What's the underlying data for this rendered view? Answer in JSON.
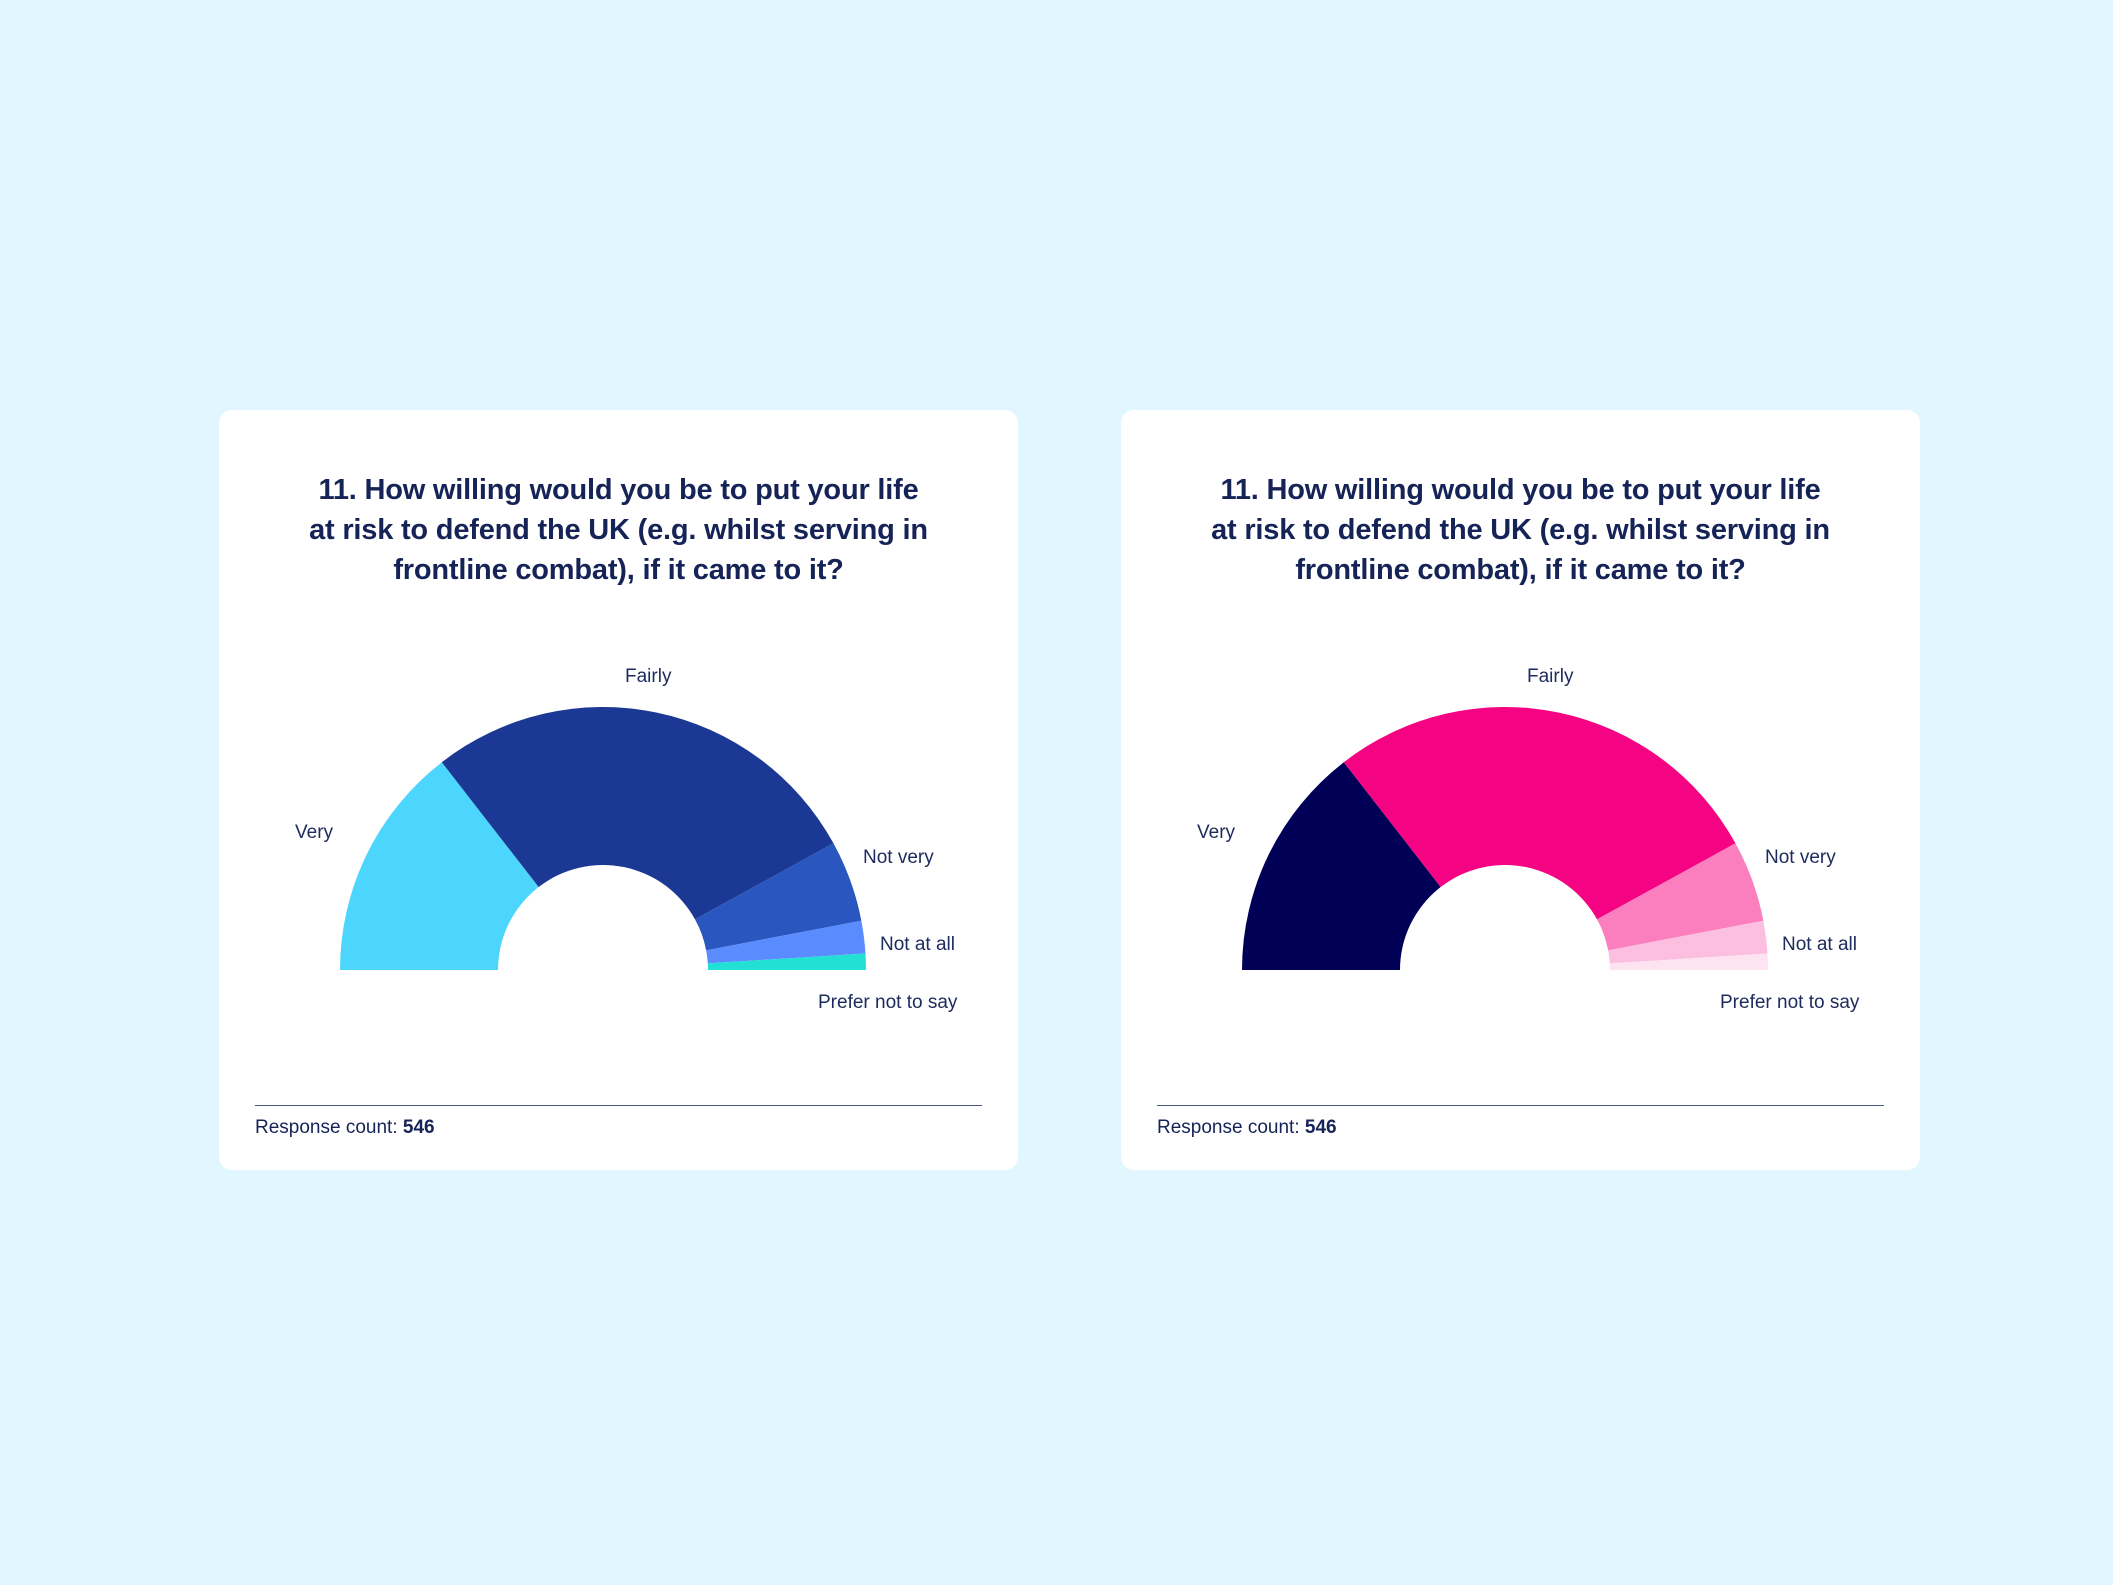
{
  "cards": [
    {
      "title_lines": [
        "11. How willing would you be to put your life",
        "at risk to defend the UK (e.g. whilst serving in",
        "frontline combat), if it came to it?"
      ],
      "footer": {
        "label": "Response count:",
        "value": "546"
      },
      "labels": {
        "very": "Very",
        "fairly": "Fairly",
        "not_very": "Not very",
        "not_at_all": "Not at all",
        "prefer_not": "Prefer not to say"
      },
      "colors": [
        "#4cd5fd",
        "#1b3894",
        "#2a57bf",
        "#5b8cff",
        "#23e0d5"
      ]
    },
    {
      "title_lines": [
        "11. How willing would you be to put your life",
        "at risk to defend the UK (e.g. whilst serving in",
        "frontline combat), if it came to it?"
      ],
      "footer": {
        "label": "Response count:",
        "value": "546"
      },
      "labels": {
        "very": "Very",
        "fairly": "Fairly",
        "not_very": "Not very",
        "not_at_all": "Not at all",
        "prefer_not": "Prefer not to say"
      },
      "colors": [
        "#010057",
        "#f40382",
        "#fb7fbf",
        "#fdbfdf",
        "#fee4f1"
      ]
    }
  ],
  "chart_data": [
    {
      "type": "pie",
      "subtype": "half-donut",
      "title": "11. How willing would you be to put your life at risk to defend the UK (e.g. whilst serving in frontline combat), if it came to it?",
      "categories": [
        "Very",
        "Fairly",
        "Not very",
        "Not at all",
        "Prefer not to say"
      ],
      "values": [
        29,
        55,
        10,
        4,
        2
      ],
      "unit": "% (estimated from arc angles)",
      "colors": [
        "#4cd5fd",
        "#1b3894",
        "#2a57bf",
        "#5b8cff",
        "#23e0d5"
      ],
      "response_count": 546,
      "legend": "none (direct labels)"
    },
    {
      "type": "pie",
      "subtype": "half-donut",
      "title": "11. How willing would you be to put your life at risk to defend the UK (e.g. whilst serving in frontline combat), if it came to it?",
      "categories": [
        "Very",
        "Fairly",
        "Not very",
        "Not at all",
        "Prefer not to say"
      ],
      "values": [
        29,
        55,
        10,
        4,
        2
      ],
      "unit": "% (estimated from arc angles)",
      "colors": [
        "#010057",
        "#f40382",
        "#fb7fbf",
        "#fdbfdf",
        "#fee4f1"
      ],
      "response_count": 546,
      "legend": "none (direct labels)"
    }
  ]
}
